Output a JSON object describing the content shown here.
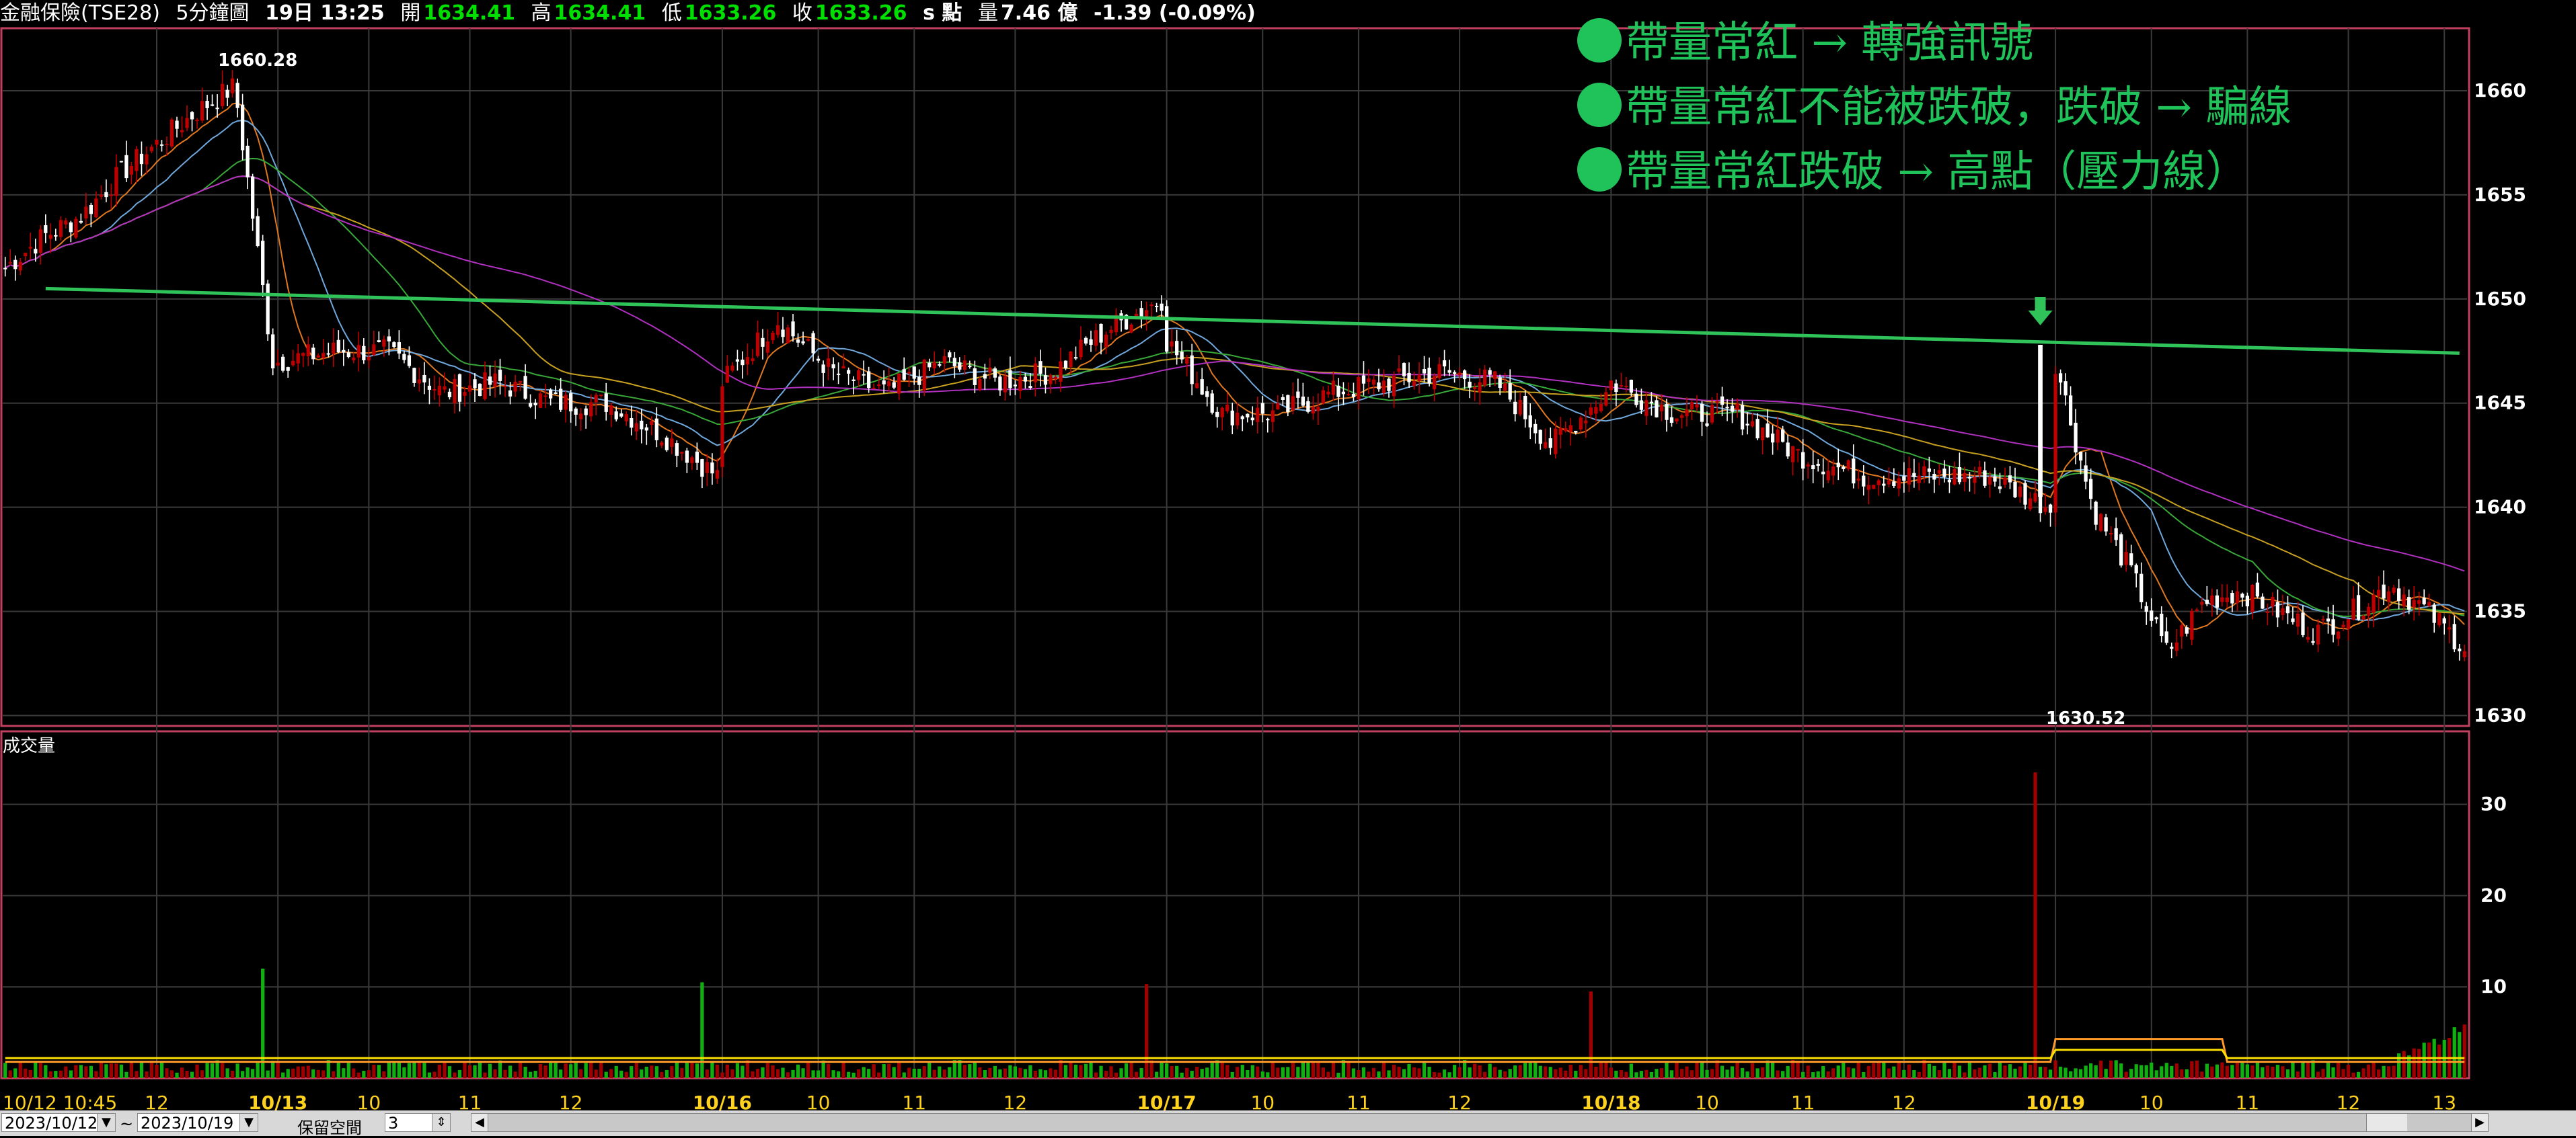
{
  "header": {
    "title": "金融保險(TSE28)",
    "interval": "5分鐘圖",
    "datetime": "19日 13:25",
    "open_label": "開",
    "open": "1634.41",
    "high_label": "高",
    "high": "1634.41",
    "low_label": "低",
    "low": "1633.26",
    "close_label": "收",
    "close": "1633.26",
    "unit": "s 點",
    "volume_label": "量",
    "volume": "7.46 億",
    "change": "-1.39 (-0.09%)"
  },
  "annotations": [
    "帶量常紅 → 轉強訊號",
    "帶量常紅不能被跌破，跌破 → 騙線",
    "帶量常紅跌破 → 高點（壓力線）"
  ],
  "chart_data": [
    {
      "type": "candlestick",
      "title": "",
      "y_ticks": [
        1630,
        1635,
        1640,
        1645,
        1650,
        1655,
        1660
      ],
      "ylim": [
        1629.5,
        1663
      ],
      "grid": true,
      "labels": {
        "max": "1660.28",
        "min": "1630.52"
      },
      "resistance_line": {
        "from": [
          8,
          1650.5
        ],
        "to": [
          486,
          1647.4
        ]
      },
      "signal_arrow_bar": 403,
      "bar_count": 488,
      "days": [
        {
          "start_time": "10:45",
          "closes": [
            1651.5,
            1653,
            1654,
            1656,
            1657.5,
            1659,
            1660.2,
            1647
          ]
        },
        {
          "closes": [
            1647,
            1647.5,
            1647.5,
            1645.5,
            1646,
            1645,
            1645,
            1643.5,
            1641.5
          ]
        },
        {
          "closes": [
            1646,
            1649,
            1646.5,
            1645.5,
            1647,
            1646,
            1646.5,
            1648.5,
            1650
          ]
        },
        {
          "closes": [
            1648,
            1644.5,
            1644.5,
            1645.5,
            1646,
            1646.5,
            1646,
            1643,
            1645.5
          ]
        },
        {
          "closes": [
            1646,
            1644.5,
            1644.5,
            1642.5,
            1641.5,
            1641.5,
            1641.5,
            1640
          ]
        },
        {
          "closes": [
            1647,
            1640,
            1637,
            1633,
            1635.5,
            1636,
            1635,
            1634,
            1635,
            1636.3,
            1635,
            1633.3
          ]
        }
      ],
      "moving_averages": [
        {
          "color": "#e07820",
          "period": 10
        },
        {
          "color": "#6fa8dc",
          "period": 20
        },
        {
          "color": "#38a838",
          "period": 40
        },
        {
          "color": "#c8a020",
          "period": 60
        },
        {
          "color": "#b030c0",
          "period": 100
        }
      ]
    },
    {
      "type": "bar",
      "title": "成交量",
      "y_ticks": [
        10,
        20,
        30
      ],
      "ylim": [
        0,
        38
      ],
      "spikes": [
        [
          51,
          12
        ],
        [
          138,
          10.5
        ],
        [
          226,
          10.3
        ],
        [
          314,
          9.5
        ],
        [
          402,
          33.5
        ]
      ],
      "volume_ma_color": "#ff9a2a",
      "volume_ma2_color": "#ffe000"
    }
  ],
  "x_axis": {
    "labels": [
      {
        "t": "10/12 10:45",
        "bar": 0,
        "day": false
      },
      {
        "t": "12",
        "bar": 30,
        "day": false
      },
      {
        "t": "10/13",
        "bar": 54,
        "day": true
      },
      {
        "t": "10",
        "bar": 72,
        "day": false
      },
      {
        "t": "11",
        "bar": 92,
        "day": false
      },
      {
        "t": "12",
        "bar": 112,
        "day": false
      },
      {
        "t": "10/16",
        "bar": 142,
        "day": true
      },
      {
        "t": "10",
        "bar": 161,
        "day": false
      },
      {
        "t": "11",
        "bar": 180,
        "day": false
      },
      {
        "t": "12",
        "bar": 200,
        "day": false
      },
      {
        "t": "10/17",
        "bar": 230,
        "day": true
      },
      {
        "t": "10",
        "bar": 249,
        "day": false
      },
      {
        "t": "11",
        "bar": 268,
        "day": false
      },
      {
        "t": "12",
        "bar": 288,
        "day": false
      },
      {
        "t": "10/18",
        "bar": 318,
        "day": true
      },
      {
        "t": "10",
        "bar": 337,
        "day": false
      },
      {
        "t": "11",
        "bar": 356,
        "day": false
      },
      {
        "t": "12",
        "bar": 376,
        "day": false
      },
      {
        "t": "10/19",
        "bar": 406,
        "day": true
      },
      {
        "t": "10",
        "bar": 425,
        "day": false
      },
      {
        "t": "11",
        "bar": 444,
        "day": false
      },
      {
        "t": "12",
        "bar": 464,
        "day": false
      },
      {
        "t": "13",
        "bar": 483,
        "day": false
      }
    ]
  },
  "controls": {
    "start_date": "2023/10/12",
    "separator": "~",
    "end_date": "2023/10/19",
    "reserve_label": "保留空間",
    "reserve_value": "3"
  },
  "colors": {
    "up": "#c00000",
    "down": "#ffffff",
    "vol_up": "#a00000",
    "vol_down": "#10b010",
    "grid": "#3a3a3a",
    "border": "#c04060",
    "axis_text": "#ffffff",
    "day_label": "#ffd21e",
    "time_label": "#ffd21e",
    "resistance": "#2fc35a"
  }
}
